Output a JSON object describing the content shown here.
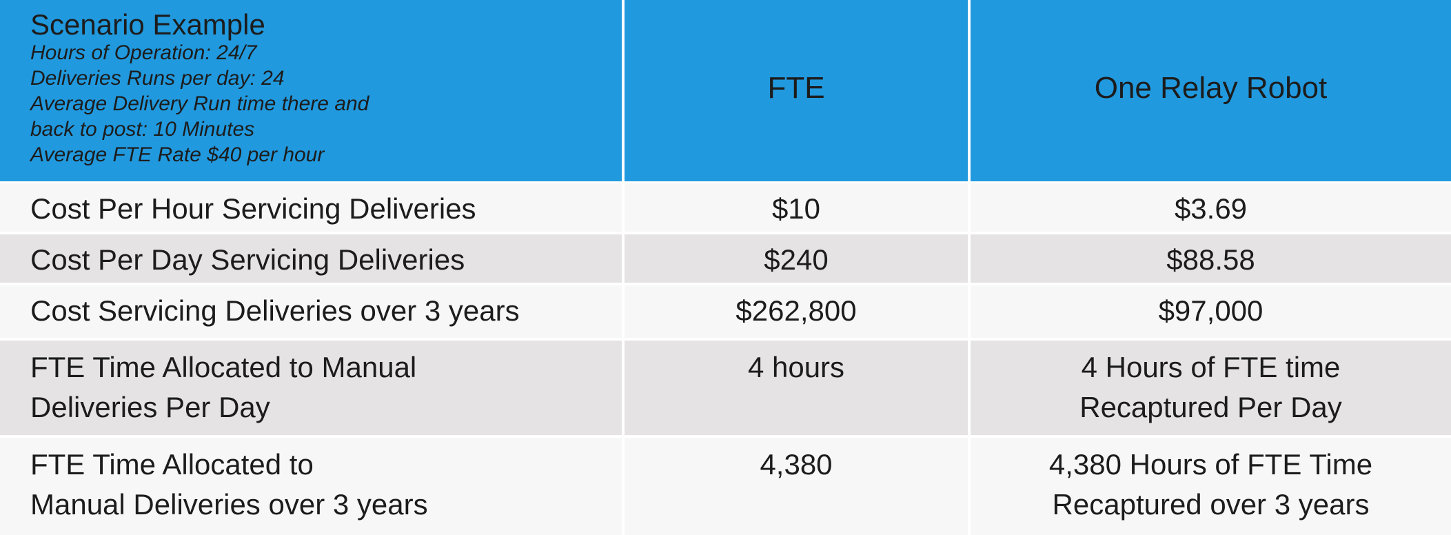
{
  "header": {
    "title": "Scenario Example",
    "details": [
      "Hours of Operation: 24/7",
      "Deliveries Runs per day: 24",
      "Average Delivery Run time there and",
      "back to post: 10 Minutes",
      "Average FTE Rate $40 per hour"
    ],
    "columns": [
      "FTE",
      "One Relay Robot"
    ]
  },
  "table": {
    "rows": [
      [
        [
          "Cost Per Hour Servicing Deliveries"
        ],
        [
          "$10"
        ],
        [
          "$3.69"
        ]
      ],
      [
        [
          "Cost Per Day Servicing Deliveries"
        ],
        [
          "$240"
        ],
        [
          "$88.58"
        ]
      ],
      [
        [
          "Cost Servicing Deliveries over 3 years"
        ],
        [
          "$262,800"
        ],
        [
          "$97,000"
        ]
      ],
      [
        [
          "FTE Time Allocated to Manual",
          "Deliveries Per Day"
        ],
        [
          "4 hours"
        ],
        [
          "4 Hours of FTE time",
          "Recaptured Per Day"
        ]
      ],
      [
        [
          "FTE Time Allocated to",
          "Manual Deliveries over 3 years"
        ],
        [
          "4,380"
        ],
        [
          "4,380 Hours of FTE Time",
          "Recaptured over 3 years"
        ]
      ]
    ]
  }
}
